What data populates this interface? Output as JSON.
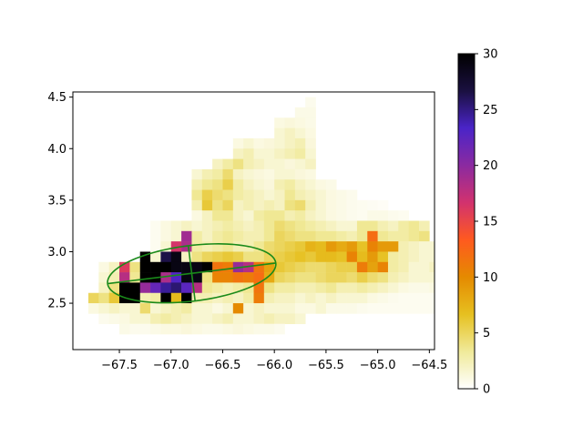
{
  "chart_data": {
    "type": "heatmap",
    "title": "",
    "xlabel": "",
    "ylabel": "",
    "xlim": [
      -67.95,
      -64.45
    ],
    "ylim": [
      2.05,
      4.55
    ],
    "cell_size": [
      0.1,
      0.1
    ],
    "x_ticks": [
      -67.5,
      -67.0,
      -66.5,
      -66.0,
      -65.5,
      -65.0,
      -64.5
    ],
    "x_tick_labels": [
      "−67.5",
      "−67.0",
      "−66.5",
      "−66.0",
      "−65.5",
      "−65.0",
      "−64.5"
    ],
    "y_ticks": [
      2.5,
      3.0,
      3.5,
      4.0,
      4.5
    ],
    "y_tick_labels": [
      "2.5",
      "3.0",
      "3.5",
      "4.0",
      "4.5"
    ],
    "colorbar": {
      "colormap": "CMRmap_r",
      "range": [
        0,
        30
      ],
      "ticks": [
        0,
        5,
        10,
        15,
        20,
        25,
        30
      ],
      "tick_labels": [
        "0",
        "5",
        "10",
        "15",
        "20",
        "25",
        "30"
      ],
      "stops": [
        "#ffffff",
        "#f0ea9a",
        "#e6c020",
        "#e58a00",
        "#ff5a1f",
        "#d2326e",
        "#8b2aa0",
        "#4a24c8",
        "#1a1040",
        "#000000"
      ]
    },
    "cells": [
      {
        "y": 4.45,
        "x0": -65.65,
        "values": [
          0.6
        ]
      },
      {
        "y": 4.35,
        "x0": -65.75,
        "values": [
          0.8,
          0.8
        ]
      },
      {
        "y": 4.25,
        "x0": -65.95,
        "values": [
          1.0,
          1.2,
          1.0,
          0.8
        ]
      },
      {
        "y": 4.15,
        "x0": -65.95,
        "values": [
          1.5,
          2.0,
          1.5,
          1.0
        ]
      },
      {
        "y": 4.05,
        "x0": -66.35,
        "values": [
          1.0,
          1.5,
          1.0,
          1.2,
          1.5,
          2.0,
          2.5,
          1.2
        ]
      },
      {
        "y": 3.95,
        "x0": -66.35,
        "values": [
          2.0,
          2.5,
          1.5,
          1.5,
          2.0,
          2.5,
          3.0,
          1.5
        ]
      },
      {
        "y": 3.85,
        "x0": -66.55,
        "values": [
          2.0,
          3.0,
          4.0,
          2.5,
          2.0,
          1.5,
          1.5,
          1.2,
          1.5,
          2.0
        ]
      },
      {
        "y": 3.75,
        "x0": -66.75,
        "values": [
          1.5,
          2.5,
          3.0,
          4.5,
          2.0,
          1.5,
          1.2,
          1.0,
          1.5,
          1.5,
          1.2,
          1.0
        ]
      },
      {
        "y": 3.65,
        "x0": -66.75,
        "values": [
          2.5,
          3.5,
          4.0,
          5.5,
          3.0,
          2.0,
          1.5,
          1.2,
          2.5,
          3.0,
          2.0,
          1.5,
          1.0,
          0.8
        ]
      },
      {
        "y": 3.55,
        "x0": -66.75,
        "values": [
          3.5,
          5.5,
          4.5,
          4.0,
          3.0,
          2.5,
          2.0,
          1.5,
          2.0,
          3.5,
          2.5,
          2.0,
          1.5,
          1.0,
          0.8,
          0.6
        ]
      },
      {
        "y": 3.45,
        "x0": -66.75,
        "values": [
          2.5,
          6.0,
          4.0,
          5.0,
          2.0,
          2.5,
          2.0,
          2.5,
          2.0,
          4.0,
          4.5,
          2.5,
          1.5,
          1.0,
          0.8,
          0.6,
          0.5,
          0.4,
          0.3
        ]
      },
      {
        "y": 3.35,
        "x0": -66.75,
        "values": [
          1.0,
          2.0,
          3.5,
          3.5,
          2.0,
          1.5,
          3.0,
          3.5,
          3.5,
          2.5,
          3.0,
          2.0,
          1.5,
          1.0,
          0.8,
          0.6,
          0.5,
          0.8,
          0.8,
          0.6,
          0.5
        ]
      },
      {
        "y": 3.25,
        "x0": -67.15,
        "values": [
          0.5,
          1.0,
          1.5,
          2.0,
          1.5,
          2.0,
          2.5,
          3.0,
          2.5,
          2.0,
          2.5,
          3.5,
          4.5,
          4.0,
          3.5,
          3.0,
          2.5,
          2.0,
          1.5,
          1.5,
          3.5,
          3.5,
          2.5,
          2.0,
          3.0,
          3.5,
          2.5
        ]
      },
      {
        "y": 3.15,
        "x0": -67.15,
        "values": [
          0.5,
          1.0,
          1.5,
          19.0,
          3.0,
          2.0,
          3.0,
          3.5,
          3.0,
          2.5,
          2.5,
          3.5,
          5.0,
          4.5,
          4.0,
          4.0,
          3.5,
          3.5,
          3.0,
          2.5,
          3.5,
          12.0,
          3.5,
          3.0,
          3.0,
          3.5,
          4.0
        ]
      },
      {
        "y": 3.05,
        "x0": -67.15,
        "values": [
          0.5,
          1.5,
          16.5,
          18.5,
          3.0,
          2.5,
          3.0,
          3.5,
          2.5,
          2.5,
          3.5,
          4.5,
          5.0,
          5.5,
          6.0,
          7.5,
          7.0,
          9.0,
          8.0,
          9.0,
          6.5,
          10.5,
          9.0,
          9.0,
          2.5,
          2.0,
          1.5,
          1.5
        ]
      },
      {
        "y": 2.95,
        "x0": -67.25,
        "values": [
          30.0,
          1.5,
          26.5,
          29.0,
          2.0,
          4.0,
          5.0,
          5.5,
          6.0,
          5.5,
          4.0,
          4.0,
          5.0,
          5.5,
          6.0,
          6.5,
          6.0,
          7.0,
          7.0,
          6.5,
          10.5,
          7.0,
          9.0,
          6.5,
          3.0,
          2.5,
          2.0,
          1.5,
          1.5,
          2.0
        ]
      },
      {
        "y": 2.85,
        "x0": -67.65,
        "values": [
          1.0,
          2.0,
          16.0,
          4.0,
          30.0,
          30.0,
          30.0,
          29.0,
          29.0,
          29.0,
          30.0,
          11.5,
          11.0,
          19.5,
          18.0,
          11.5,
          8.5,
          6.0,
          5.5,
          5.0,
          4.5,
          4.5,
          5.0,
          5.5,
          5.5,
          11.0,
          8.5,
          10.5,
          3.0,
          2.5,
          1.5,
          1.5,
          2.0,
          1.5,
          3.0
        ]
      },
      {
        "y": 2.75,
        "x0": -67.65,
        "values": [
          1.5,
          2.5,
          18.0,
          3.5,
          30.0,
          30.0,
          18.5,
          23.0,
          29.0,
          29.0,
          4.0,
          10.5,
          10.5,
          11.5,
          11.0,
          12.0,
          8.0,
          5.0,
          4.5,
          4.0,
          4.0,
          4.5,
          5.0,
          5.0,
          4.5,
          5.5,
          4.5,
          4.0,
          2.5,
          2.0,
          1.5,
          1.5,
          1.5,
          1.5,
          2.5
        ]
      },
      {
        "y": 2.65,
        "x0": -67.65,
        "values": [
          2.0,
          4.0,
          30.0,
          30.0,
          19.5,
          22.0,
          24.5,
          25.5,
          22.5,
          18.0,
          3.5,
          3.0,
          2.5,
          3.0,
          3.5,
          11.5,
          4.0,
          3.0,
          3.0,
          2.5,
          2.5,
          3.0,
          3.5,
          2.5,
          2.5,
          3.0,
          2.5,
          2.0,
          1.5,
          1.0,
          0.8,
          0.8,
          1.0,
          0.8,
          0.8
        ]
      },
      {
        "y": 2.55,
        "x0": -67.75,
        "values": [
          5.0,
          4.0,
          6.0,
          30.0,
          30.0,
          2.5,
          3.0,
          30.0,
          7.0,
          30.0,
          2.5,
          2.5,
          2.0,
          2.5,
          2.0,
          3.0,
          11.0,
          2.5,
          2.0,
          2.0,
          1.5,
          2.0,
          1.5,
          2.0,
          1.5,
          1.5,
          1.5,
          1.0,
          0.8,
          0.6,
          0.5,
          0.5,
          0.5,
          0.5,
          0.5,
          0.5
        ]
      },
      {
        "y": 2.45,
        "x0": -67.75,
        "values": [
          1.0,
          1.5,
          2.0,
          1.5,
          1.5,
          4.5,
          1.5,
          2.0,
          2.5,
          3.0,
          1.5,
          1.5,
          1.0,
          1.5,
          10.0,
          1.5,
          2.0,
          1.5,
          1.5,
          1.5,
          1.0,
          1.0,
          1.5,
          0.8,
          0.8,
          0.8,
          0.6,
          0.5,
          0.5,
          0.5,
          0.5,
          0.5,
          0.5,
          0.5,
          0.5
        ]
      },
      {
        "y": 2.35,
        "x0": -67.65,
        "values": [
          0.6,
          0.8,
          1.0,
          1.5,
          1.5,
          2.5,
          3.0,
          2.5,
          2.0,
          1.5,
          1.5,
          2.0,
          2.5,
          1.5,
          1.5,
          2.0,
          2.5,
          2.0,
          2.0,
          1.5
        ]
      },
      {
        "y": 2.25,
        "x0": -67.45,
        "values": [
          0.8,
          0.6,
          0.6,
          0.8,
          1.0,
          1.0,
          1.2,
          1.0,
          0.8,
          0.8,
          1.0,
          1.2,
          1.0,
          0.8,
          0.8,
          0.6
        ]
      }
    ],
    "overlay": {
      "color": "#1a8a1a",
      "ellipse": {
        "center": [
          -66.8,
          2.79
        ],
        "semi_axes": [
          0.82,
          0.27
        ],
        "angle_deg": 7
      },
      "axes_lines": true
    }
  }
}
